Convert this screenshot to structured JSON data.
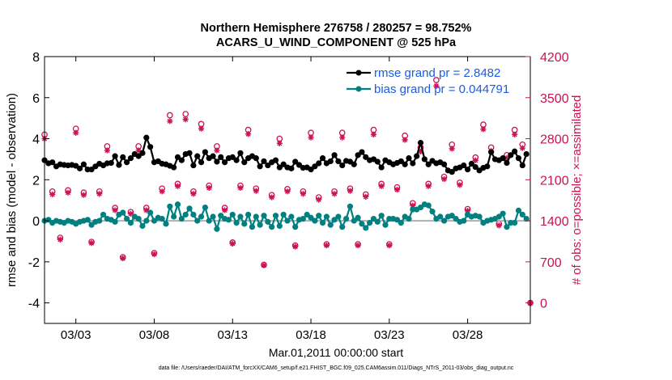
{
  "title": {
    "line1": "Northern Hemisphere 276758 / 280257 = 98.752%",
    "line2": "ACARS_U_WIND_COMPONENT @ 525 hPa"
  },
  "footer": "data file: /Users/raeder/DAI/ATM_forcXX/CAM6_setup/f.e21.FHIST_BGC.f09_025.CAM6assim.011/Diags_NTrS_2011-03/obs_diag_output.nc",
  "colors": {
    "rmse": "#000000",
    "bias": "#008080",
    "obs": "#cc1155",
    "legend_text": "#1a5ce6",
    "zero": "#b0b0b0"
  },
  "chart_data": {
    "type": "line",
    "xlabel": "Mar.01,2011 00:00:00 start",
    "ylabel": "rmse and bias (model - observation)",
    "y2label": "# of obs: o=possible; ×=assimilated",
    "xlim": [
      1.0,
      32.0
    ],
    "ylim": [
      -5,
      8
    ],
    "y2lim": [
      -350,
      4200
    ],
    "x_ticks": [
      3,
      8,
      13,
      18,
      23,
      28
    ],
    "x_tick_labels": [
      "03/03",
      "03/08",
      "03/13",
      "03/18",
      "03/23",
      "03/28"
    ],
    "y_ticks": [
      -4,
      -2,
      0,
      2,
      4,
      6,
      8
    ],
    "y2_ticks": [
      0,
      700,
      1400,
      2100,
      2800,
      3500,
      4200
    ],
    "legend": [
      "rmse grand pr = 2.8482",
      "bias grand pr = 0.044791"
    ],
    "x": [
      1.0,
      1.25,
      1.5,
      1.75,
      2.0,
      2.25,
      2.5,
      2.75,
      3.0,
      3.25,
      3.5,
      3.75,
      4.0,
      4.25,
      4.5,
      4.75,
      5.0,
      5.25,
      5.5,
      5.75,
      6.0,
      6.25,
      6.5,
      6.75,
      7.0,
      7.25,
      7.5,
      7.75,
      8.0,
      8.25,
      8.5,
      8.75,
      9.0,
      9.25,
      9.5,
      9.75,
      10.0,
      10.25,
      10.5,
      10.75,
      11.0,
      11.25,
      11.5,
      11.75,
      12.0,
      12.25,
      12.5,
      12.75,
      13.0,
      13.25,
      13.5,
      13.75,
      14.0,
      14.25,
      14.5,
      14.75,
      15.0,
      15.25,
      15.5,
      15.75,
      16.0,
      16.25,
      16.5,
      16.75,
      17.0,
      17.25,
      17.5,
      17.75,
      18.0,
      18.25,
      18.5,
      18.75,
      19.0,
      19.25,
      19.5,
      19.75,
      20.0,
      20.25,
      20.5,
      20.75,
      21.0,
      21.25,
      21.5,
      21.75,
      22.0,
      22.25,
      22.5,
      22.75,
      23.0,
      23.25,
      23.5,
      23.75,
      24.0,
      24.25,
      24.5,
      24.75,
      25.0,
      25.25,
      25.5,
      25.75,
      26.0,
      26.25,
      26.5,
      26.75,
      27.0,
      27.25,
      27.5,
      27.75,
      28.0,
      28.25,
      28.5,
      28.75,
      29.0,
      29.25,
      29.5,
      29.75,
      30.0,
      30.25,
      30.5,
      30.75,
      31.0,
      31.25,
      31.5,
      31.75
    ],
    "series": [
      {
        "name": "rmse grand pr = 2.8482",
        "marker": "circle",
        "values": [
          2.95,
          2.8,
          2.85,
          2.65,
          2.75,
          2.72,
          2.7,
          2.72,
          2.68,
          2.55,
          2.75,
          2.5,
          2.5,
          2.65,
          2.78,
          2.7,
          2.8,
          2.82,
          3.15,
          2.72,
          3.1,
          2.85,
          3.05,
          3.25,
          3.15,
          3.3,
          4.05,
          3.6,
          2.85,
          2.9,
          2.78,
          2.75,
          2.68,
          2.6,
          3.1,
          2.95,
          3.25,
          3.3,
          2.7,
          3.15,
          2.85,
          3.35,
          3.05,
          3.15,
          2.88,
          3.1,
          2.85,
          3.05,
          3.1,
          2.95,
          3.3,
          2.85,
          3.05,
          3.15,
          3.05,
          2.65,
          2.9,
          2.7,
          2.85,
          2.95,
          2.6,
          2.75,
          2.6,
          2.55,
          2.88,
          2.72,
          2.58,
          2.6,
          2.5,
          2.65,
          2.8,
          3.05,
          2.8,
          2.9,
          3.2,
          2.9,
          2.7,
          2.92,
          2.88,
          2.75,
          3.2,
          3.35,
          3.1,
          2.95,
          3.0,
          2.88,
          2.6,
          2.95,
          2.85,
          2.75,
          2.82,
          2.9,
          2.75,
          3.05,
          2.8,
          3.15,
          3.8,
          3.0,
          2.75,
          2.92,
          2.8,
          2.85,
          2.75,
          2.45,
          2.38,
          2.55,
          2.6,
          2.7,
          2.5,
          2.78,
          2.62,
          2.45,
          2.58,
          2.65,
          3.35,
          3.0,
          2.95,
          3.05,
          2.82,
          3.2,
          3.38,
          3.05,
          2.7,
          3.25
        ]
      },
      {
        "name": "bias grand pr = 0.044791",
        "marker": "circle",
        "values": [
          0.0,
          0.05,
          -0.1,
          0.0,
          -0.05,
          -0.1,
          0.0,
          -0.05,
          -0.15,
          -0.05,
          0.0,
          0.05,
          -0.2,
          -0.05,
          0.0,
          0.3,
          0.1,
          0.05,
          -0.05,
          0.3,
          0.4,
          0.1,
          -0.1,
          0.2,
          0.1,
          -0.25,
          0.0,
          0.4,
          0.0,
          0.15,
          0.1,
          -0.15,
          0.7,
          0.2,
          0.8,
          0.1,
          0.3,
          0.6,
          0.3,
          0.0,
          0.2,
          0.65,
          0.0,
          0.2,
          -0.4,
          0.25,
          0.1,
          0.05,
          0.3,
          -0.1,
          0.2,
          -0.15,
          0.3,
          -0.3,
          0.2,
          -0.2,
          0.25,
          -0.05,
          -0.3,
          0.25,
          -0.25,
          0.3,
          0.0,
          0.2,
          -0.3,
          0.05,
          0.1,
          0.3,
          0.15,
          0.0,
          0.25,
          -0.1,
          0.2,
          -0.2,
          0.05,
          0.2,
          -0.3,
          0.1,
          0.7,
          0.0,
          0.15,
          -0.15,
          -0.35,
          -0.1,
          0.1,
          -0.05,
          0.25,
          -0.2,
          0.1,
          0.1,
          0.05,
          -0.1,
          0.2,
          0.1,
          0.55,
          0.55,
          0.65,
          0.8,
          0.75,
          0.45,
          0.1,
          0.2,
          0.0,
          0.2,
          0.25,
          0.1,
          -0.05,
          0.0,
          0.3,
          0.2,
          0.25,
          0.2,
          -0.1,
          0.0,
          0.05,
          0.1,
          0.2,
          0.35,
          -0.3,
          -0.1,
          -0.1,
          0.5,
          0.3,
          0.1
        ]
      }
    ],
    "obs_x": [
      1.0,
      1.5,
      2.0,
      2.5,
      3.0,
      3.5,
      4.0,
      4.5,
      5.0,
      5.5,
      6.0,
      6.5,
      7.0,
      7.5,
      8.0,
      8.5,
      9.0,
      9.5,
      10.0,
      10.5,
      11.0,
      11.5,
      12.0,
      12.5,
      13.0,
      13.5,
      14.0,
      14.5,
      15.0,
      15.5,
      16.0,
      16.5,
      17.0,
      17.5,
      18.0,
      18.5,
      19.0,
      19.5,
      20.0,
      20.5,
      21.0,
      21.5,
      22.0,
      22.5,
      23.0,
      23.5,
      24.0,
      24.5,
      25.0,
      25.5,
      26.0,
      26.5,
      27.0,
      27.5,
      28.0,
      28.5,
      29.0,
      29.5,
      30.0,
      30.5,
      31.0,
      31.5
    ],
    "obs_possible": [
      2870,
      1900,
      1110,
      1920,
      2970,
      1880,
      1040,
      1900,
      2670,
      1620,
      780,
      1550,
      2670,
      1620,
      850,
      1950,
      3200,
      2030,
      3220,
      1900,
      3050,
      2000,
      2670,
      1620,
      1030,
      2000,
      2950,
      1950,
      650,
      1840,
      2800,
      1940,
      980,
      1900,
      2900,
      1800,
      1000,
      1900,
      2900,
      1950,
      1000,
      1850,
      2950,
      2030,
      1000,
      1970,
      2850,
      1700,
      2650,
      2030,
      3800,
      2150,
      2700,
      2050,
      1600,
      2480,
      3040,
      2650,
      1350,
      2520,
      2950,
      2700
    ],
    "obs_assimilated": [
      2800,
      1850,
      1080,
      1880,
      2900,
      1840,
      1020,
      1860,
      2600,
      1580,
      760,
      1520,
      2600,
      1580,
      830,
      1900,
      3100,
      1990,
      3130,
      1860,
      2970,
      1960,
      2600,
      1580,
      1010,
      1960,
      2880,
      1910,
      640,
      1800,
      2720,
      1900,
      960,
      1860,
      2820,
      1760,
      980,
      1860,
      2820,
      1910,
      980,
      1810,
      2870,
      1990,
      980,
      1930,
      2780,
      1660,
      2580,
      1990,
      3700,
      2110,
      2630,
      2010,
      1570,
      2430,
      2960,
      2590,
      1320,
      2470,
      2870,
      2640
    ],
    "obs_extra": {
      "x": 32.0,
      "possible": 0,
      "assimilated": 0
    }
  }
}
